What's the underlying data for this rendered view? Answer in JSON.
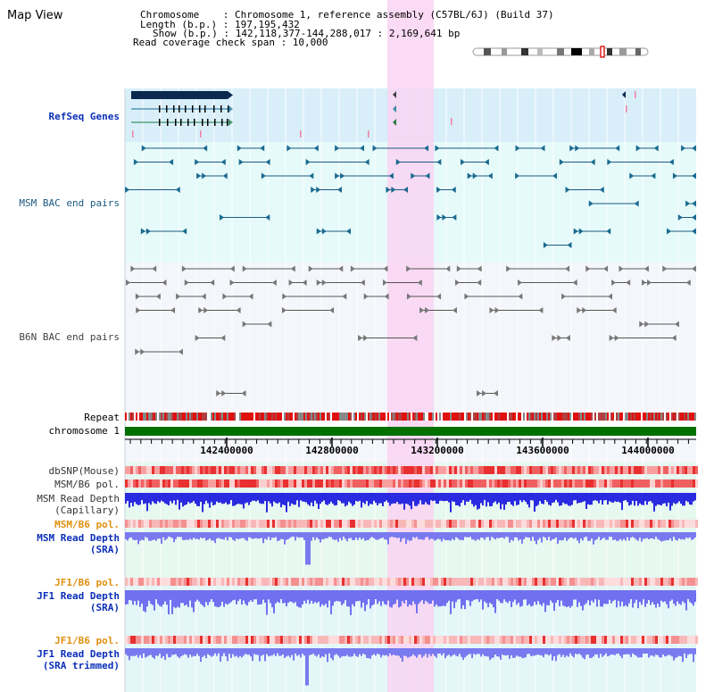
{
  "view_title": "Map View",
  "info": {
    "chromosome": "Chromosome    : Chromosome 1, reference assembly (C57BL/6J) (Build 37)",
    "length": "Length (b.p.) : 197,195,432",
    "show": "Show (b.p.) : 142,118,377-144,288,017 : 2,169,641 bp",
    "read_span": "Read coverage check span : 10,000"
  },
  "track_labels": {
    "refseq": "RefSeq Genes",
    "msm_bac": "MSM BAC end pairs",
    "b6n_bac": "B6N BAC end pairs",
    "repeat": "Repeat",
    "chromosome": "chromosome 1",
    "dbsnp": "dbSNP(Mouse)",
    "msm_b6_pol_1": "MSM/B6 pol.",
    "msm_read_depth_cap_1": "MSM Read Depth",
    "msm_read_depth_cap_2": "(Capillary)",
    "msm_b6_pol_2": "MSM/B6 pol.",
    "msm_read_depth_sra_1": "MSM Read Depth",
    "msm_read_depth_sra_2": "(SRA)",
    "jf1_b6_pol_1": "JF1/B6 pol.",
    "jf1_read_depth_sra_1": "JF1 Read Depth",
    "jf1_read_depth_sra_2": "(SRA)",
    "jf1_b6_pol_2": "JF1/B6 pol.",
    "jf1_read_depth_trim_1": "JF1 Read Depth",
    "jf1_read_depth_trim_2": "(SRA trimmed)"
  },
  "ruler": {
    "ticks": [
      "142400000",
      "142800000",
      "143200000",
      "143600000",
      "144000000"
    ]
  },
  "colors": {
    "highlight": "#f9d4f2",
    "refseq_bg": "#d8effa",
    "bac_bg": "#e6fafa",
    "depth_bg": "#e6f8f0",
    "chromosome_bar": "#007000",
    "depth_blue": "#2a2ae0",
    "depth_light": "#7a7af0"
  }
}
